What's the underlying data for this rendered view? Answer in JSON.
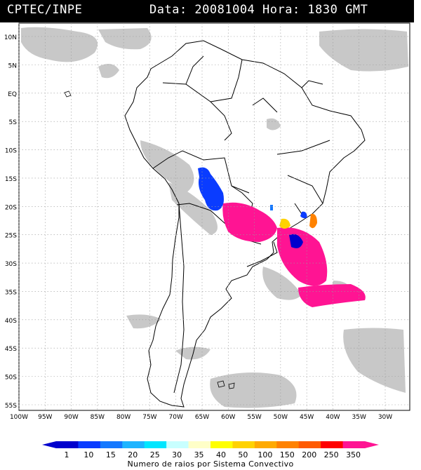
{
  "header": {
    "source": "CPTEC/INPE",
    "date_time": "Data: 20081004 Hora: 1830 GMT"
  },
  "map": {
    "lat_labels": [
      "10N",
      "5N",
      "EQ",
      "5S",
      "10S",
      "15S",
      "20S",
      "25S",
      "30S",
      "35S",
      "40S",
      "45S",
      "50S",
      "55S"
    ],
    "lon_labels": [
      "100W",
      "95W",
      "90W",
      "85W",
      "80W",
      "75W",
      "70W",
      "65W",
      "60W",
      "55W",
      "50W",
      "45W",
      "40W",
      "35W",
      "30W"
    ],
    "colors": {
      "background": "#ffffff",
      "cloud": "#c8c8c8",
      "coastline": "#000000",
      "grid": "#9a9a9a"
    }
  },
  "legend": {
    "values": [
      "1",
      "10",
      "15",
      "20",
      "25",
      "30",
      "35",
      "40",
      "50",
      "100",
      "150",
      "200",
      "250",
      "350"
    ],
    "colors": [
      "#0000cd",
      "#0a3cff",
      "#1478ff",
      "#1eb4ff",
      "#00e6ff",
      "#c8ffff",
      "#ffffc8",
      "#ffff00",
      "#ffd200",
      "#ffaa00",
      "#ff8200",
      "#ff5a00",
      "#ff0000",
      "#ff1493"
    ],
    "caption": "Numero de raios por Sistema Convectivo"
  }
}
